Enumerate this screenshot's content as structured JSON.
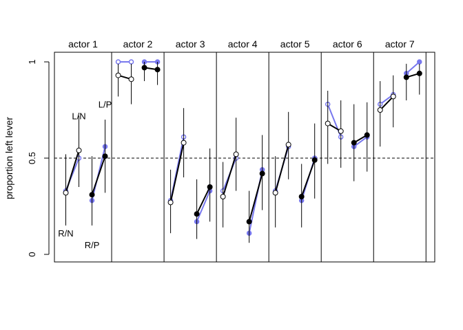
{
  "chart_data": {
    "type": "line",
    "title": "",
    "xlabel": "",
    "ylabel": "proportion left lever",
    "ylim": [
      0,
      1
    ],
    "y_ticks": [
      "0",
      "0.5",
      "1"
    ],
    "reference_line": 0.5,
    "condition_order": [
      "R/N",
      "L/N",
      "R/P",
      "L/P"
    ],
    "condition_labels": [
      {
        "text": "R/N",
        "actor": 1,
        "condition": 1,
        "value": 0.11
      },
      {
        "text": "L/N",
        "actor": 1,
        "condition": 2,
        "value": 0.72
      },
      {
        "text": "R/P",
        "actor": 1,
        "condition": 3,
        "value": 0.05
      },
      {
        "text": "L/P",
        "actor": 1,
        "condition": 4,
        "value": 0.78
      }
    ],
    "colors": {
      "raw": "#7777ee",
      "posterior": "#000000",
      "interval": "#000000"
    },
    "actors": [
      {
        "label": "actor 1",
        "raw": [
          0.33,
          0.5,
          0.28,
          0.56
        ],
        "posterior": [
          0.32,
          0.54,
          0.31,
          0.51
        ],
        "interval": [
          [
            0.15,
            0.52
          ],
          [
            0.35,
            0.72
          ],
          [
            0.15,
            0.51
          ],
          [
            0.32,
            0.7
          ]
        ]
      },
      {
        "label": "actor 2",
        "raw": [
          1.0,
          1.0,
          1.0,
          1.0
        ],
        "posterior": [
          0.93,
          0.91,
          0.97,
          0.96
        ],
        "interval": [
          [
            0.82,
            0.99
          ],
          [
            0.78,
            0.99
          ],
          [
            0.9,
            1.0
          ],
          [
            0.88,
            1.0
          ]
        ]
      },
      {
        "label": "actor 3",
        "raw": [
          0.28,
          0.61,
          0.17,
          0.33
        ],
        "posterior": [
          0.27,
          0.58,
          0.21,
          0.35
        ],
        "interval": [
          [
            0.11,
            0.44
          ],
          [
            0.4,
            0.76
          ],
          [
            0.08,
            0.39
          ],
          [
            0.17,
            0.55
          ]
        ]
      },
      {
        "label": "actor 4",
        "raw": [
          0.33,
          0.5,
          0.11,
          0.44
        ],
        "posterior": [
          0.3,
          0.52,
          0.17,
          0.42
        ],
        "interval": [
          [
            0.14,
            0.48
          ],
          [
            0.33,
            0.71
          ],
          [
            0.06,
            0.33
          ],
          [
            0.23,
            0.62
          ]
        ]
      },
      {
        "label": "actor 5",
        "raw": [
          0.33,
          0.56,
          0.28,
          0.5
        ],
        "posterior": [
          0.32,
          0.57,
          0.3,
          0.49
        ],
        "interval": [
          [
            0.14,
            0.51
          ],
          [
            0.39,
            0.74
          ],
          [
            0.14,
            0.47
          ],
          [
            0.29,
            0.68
          ]
        ]
      },
      {
        "label": "actor 6",
        "raw": [
          0.78,
          0.61,
          0.56,
          0.61
        ],
        "posterior": [
          0.68,
          0.64,
          0.58,
          0.62
        ],
        "interval": [
          [
            0.47,
            0.85
          ],
          [
            0.45,
            0.8
          ],
          [
            0.38,
            0.78
          ],
          [
            0.43,
            0.79
          ]
        ]
      },
      {
        "label": "actor 7",
        "raw": [
          0.78,
          0.83,
          0.94,
          1.0
        ],
        "posterior": [
          0.75,
          0.82,
          0.92,
          0.94
        ],
        "interval": [
          [
            0.56,
            0.9
          ],
          [
            0.66,
            0.93
          ],
          [
            0.8,
            0.99
          ],
          [
            0.83,
            0.99
          ]
        ]
      }
    ]
  }
}
